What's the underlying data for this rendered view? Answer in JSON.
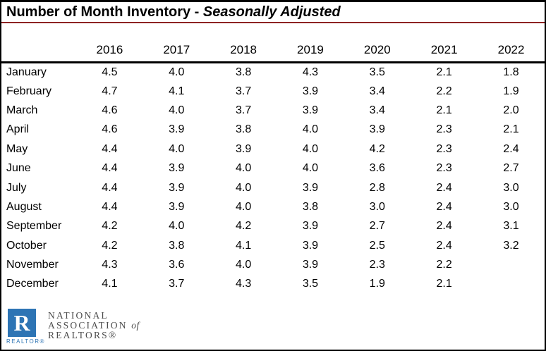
{
  "title": {
    "main": "Number of Month Inventory",
    "separator": " - ",
    "emphasis": "Seasonally Adjusted"
  },
  "table": {
    "year_headers": [
      "2016",
      "2017",
      "2018",
      "2019",
      "2020",
      "2021",
      "2022"
    ],
    "rows": [
      {
        "month": "January",
        "values": [
          "4.5",
          "4.0",
          "3.8",
          "4.3",
          "3.5",
          "2.1",
          "1.8"
        ]
      },
      {
        "month": "February",
        "values": [
          "4.7",
          "4.1",
          "3.7",
          "3.9",
          "3.4",
          "2.2",
          "1.9"
        ]
      },
      {
        "month": "March",
        "values": [
          "4.6",
          "4.0",
          "3.7",
          "3.9",
          "3.4",
          "2.1",
          "2.0"
        ]
      },
      {
        "month": "April",
        "values": [
          "4.6",
          "3.9",
          "3.8",
          "4.0",
          "3.9",
          "2.3",
          "2.1"
        ]
      },
      {
        "month": "May",
        "values": [
          "4.4",
          "4.0",
          "3.9",
          "4.0",
          "4.2",
          "2.3",
          "2.4"
        ]
      },
      {
        "month": "June",
        "values": [
          "4.4",
          "3.9",
          "4.0",
          "4.0",
          "3.6",
          "2.3",
          "2.7"
        ]
      },
      {
        "month": "July",
        "values": [
          "4.4",
          "3.9",
          "4.0",
          "3.9",
          "2.8",
          "2.4",
          "3.0"
        ]
      },
      {
        "month": "August",
        "values": [
          "4.4",
          "3.9",
          "4.0",
          "3.8",
          "3.0",
          "2.4",
          "3.0"
        ]
      },
      {
        "month": "September",
        "values": [
          "4.2",
          "4.0",
          "4.2",
          "3.9",
          "2.7",
          "2.4",
          "3.1"
        ]
      },
      {
        "month": "October",
        "values": [
          "4.2",
          "3.8",
          "4.1",
          "3.9",
          "2.5",
          "2.4",
          "3.2"
        ]
      },
      {
        "month": "November",
        "values": [
          "4.3",
          "3.6",
          "4.0",
          "3.9",
          "2.3",
          "2.2",
          ""
        ]
      },
      {
        "month": "December",
        "values": [
          "4.1",
          "3.7",
          "4.3",
          "3.5",
          "1.9",
          "2.1",
          ""
        ]
      }
    ]
  },
  "logo": {
    "letter": "R",
    "wordmark": "REALTOR®",
    "org_line1": "NATIONAL",
    "org_line2_main": "ASSOCIATION",
    "org_line2_of": "of",
    "org_line3": "REALTORS®"
  },
  "colors": {
    "title_rule_red": "#8e2323",
    "border_black": "#000000",
    "logo_blue": "#2d74b4",
    "logo_text_gray": "#4c4c4c"
  },
  "chart_data": {
    "type": "table",
    "title": "Number of Month Inventory - Seasonally Adjusted",
    "categories": [
      "January",
      "February",
      "March",
      "April",
      "May",
      "June",
      "July",
      "August",
      "September",
      "October",
      "November",
      "December"
    ],
    "series": [
      {
        "name": "2016",
        "values": [
          4.5,
          4.7,
          4.6,
          4.6,
          4.4,
          4.4,
          4.4,
          4.4,
          4.2,
          4.2,
          4.3,
          4.1
        ]
      },
      {
        "name": "2017",
        "values": [
          4.0,
          4.1,
          4.0,
          3.9,
          4.0,
          3.9,
          3.9,
          3.9,
          4.0,
          3.8,
          3.6,
          3.7
        ]
      },
      {
        "name": "2018",
        "values": [
          3.8,
          3.7,
          3.7,
          3.8,
          3.9,
          4.0,
          4.0,
          4.0,
          4.2,
          4.1,
          4.0,
          4.3
        ]
      },
      {
        "name": "2019",
        "values": [
          4.3,
          3.9,
          3.9,
          4.0,
          4.0,
          4.0,
          3.9,
          3.8,
          3.9,
          3.9,
          3.9,
          3.5
        ]
      },
      {
        "name": "2020",
        "values": [
          3.5,
          3.4,
          3.4,
          3.9,
          4.2,
          3.6,
          2.8,
          3.0,
          2.7,
          2.5,
          2.3,
          1.9
        ]
      },
      {
        "name": "2021",
        "values": [
          2.1,
          2.2,
          2.1,
          2.3,
          2.3,
          2.3,
          2.4,
          2.4,
          2.4,
          2.4,
          2.2,
          2.1
        ]
      },
      {
        "name": "2022",
        "values": [
          1.8,
          1.9,
          2.0,
          2.1,
          2.4,
          2.7,
          3.0,
          3.0,
          3.1,
          3.2,
          null,
          null
        ]
      }
    ]
  }
}
